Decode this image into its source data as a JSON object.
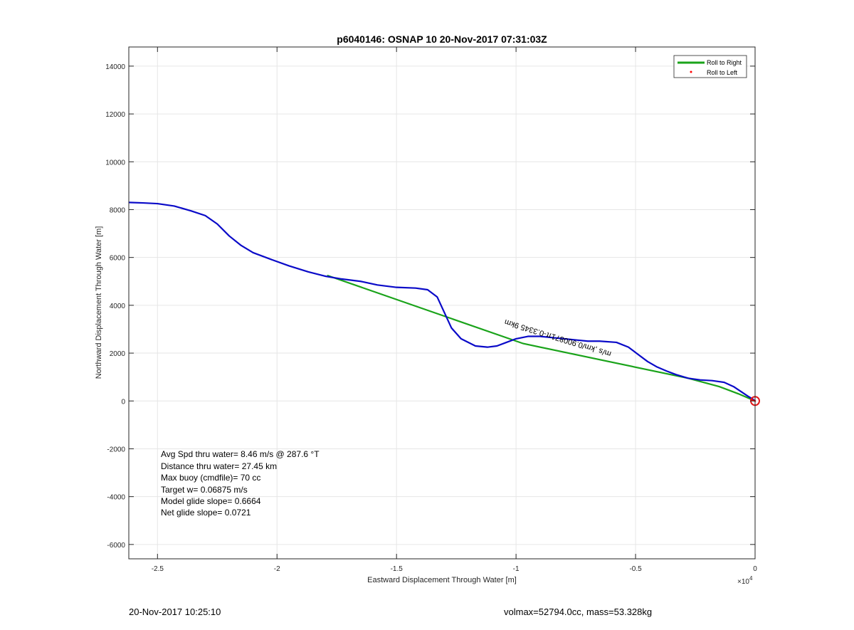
{
  "chart_data": {
    "type": "line",
    "title": "p6040146: OSNAP 10 20-Nov-2017 07:31:03Z",
    "xlabel": "Eastward Displacement Through Water [m]",
    "ylabel": "Northward Displacement Through Water [m]",
    "x_exponent_label": "×10",
    "x_exponent_power": "4",
    "xlim": [
      -26200,
      0
    ],
    "ylim": [
      -6600,
      14800
    ],
    "x_scale": 10000,
    "xticks": [
      -25000,
      -20000,
      -15000,
      -10000,
      -5000,
      0
    ],
    "xtick_labels": [
      "-2.5",
      "-2",
      "-1.5",
      "-1",
      "-0.5",
      "0"
    ],
    "yticks": [
      -6000,
      -4000,
      -2000,
      0,
      2000,
      4000,
      6000,
      8000,
      10000,
      12000,
      14000
    ],
    "ytick_labels": [
      "-6000",
      "-4000",
      "-2000",
      "0",
      "2000",
      "4000",
      "6000",
      "8000",
      "10000",
      "12000",
      "14000"
    ],
    "grid": true,
    "legend_position": "top-right",
    "series": [
      {
        "name": "Roll to Right",
        "color": "#1aa31a",
        "x": [
          -17900,
          -9700,
          -2800,
          -1500,
          -700,
          0
        ],
        "y": [
          5250,
          2400,
          950,
          600,
          300,
          0
        ]
      },
      {
        "name": "Roll to Left",
        "color": "#ff0000",
        "x": [
          -120,
          -60,
          0
        ],
        "y": [
          40,
          20,
          0
        ]
      }
    ],
    "track": {
      "color": "#0a0ac8",
      "x": [
        -26200,
        -25600,
        -25000,
        -24300,
        -23600,
        -23000,
        -22500,
        -22000,
        -21500,
        -21000,
        -20200,
        -19500,
        -18700,
        -18000,
        -17300,
        -16500,
        -15800,
        -15000,
        -14200,
        -13700,
        -13300,
        -13000,
        -12700,
        -12300,
        -11700,
        -11200,
        -10800,
        -10400,
        -10000,
        -9500,
        -9000,
        -8500,
        -8000,
        -7500,
        -7000,
        -6500,
        -5800,
        -5300,
        -4900,
        -4500,
        -4100,
        -3700,
        -3300,
        -2800,
        -2300,
        -1800,
        -1300,
        -900,
        -600,
        -300,
        -100,
        0
      ],
      "y": [
        8300,
        8280,
        8250,
        8150,
        7950,
        7750,
        7400,
        6900,
        6500,
        6200,
        5900,
        5650,
        5400,
        5220,
        5100,
        5000,
        4850,
        4750,
        4720,
        4650,
        4350,
        3700,
        3050,
        2600,
        2300,
        2250,
        2300,
        2450,
        2600,
        2700,
        2700,
        2650,
        2600,
        2550,
        2500,
        2500,
        2450,
        2250,
        1950,
        1650,
        1420,
        1250,
        1100,
        950,
        880,
        850,
        780,
        600,
        400,
        200,
        80,
        0
      ]
    },
    "track_label": "m/s  ,km/0.900871π-0.3345 9km",
    "origin_marker_color": "#e41a1a",
    "annotations": [
      "Avg Spd thru water=  8.46 m/s @ 287.6 °T",
      "Distance thru water= 27.45 km",
      "Max buoy (cmdfile)= 70 cc",
      "Target w= 0.06875 m/s",
      "Model glide slope= 0.6664",
      "Net glide slope= 0.0721"
    ]
  },
  "footer": {
    "timestamp": "20-Nov-2017 10:25:10",
    "vehicle_info": "volmax=52794.0cc, mass=53.328kg"
  }
}
